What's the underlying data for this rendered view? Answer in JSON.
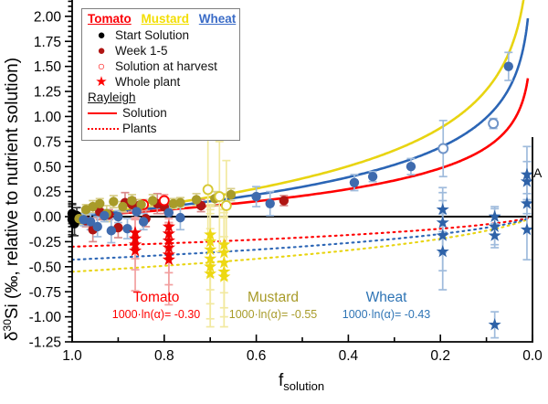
{
  "figure": {
    "ylabel_delta": "δ",
    "ylabel_sup": "30",
    "ylabel_rest": "Si (‰, relative to nutrient solution)",
    "xlabel_main": "f",
    "xlabel_sub": "solution",
    "corner_label": "A"
  },
  "legend": {
    "headers": [
      {
        "label": "Tomato",
        "color": "#fb0007"
      },
      {
        "label": "Mustard",
        "color": "#f2de00"
      },
      {
        "label": "Wheat",
        "color": "#3b6cc7"
      }
    ],
    "items": [
      {
        "label": "Start Solution",
        "glyph": "●",
        "color": "#000000"
      },
      {
        "label": "Week 1-5",
        "glyph": "●",
        "color": "#b01513"
      },
      {
        "label": "Solution at harvest",
        "glyph": "○",
        "color": "#ff0000"
      },
      {
        "label": "Whole plant",
        "glyph": "★",
        "color": "#ff0000"
      }
    ],
    "section_label": "Rayleigh",
    "line_items": [
      {
        "label": "Solution",
        "style": "solid",
        "color": "#ff0000"
      },
      {
        "label": "Plants",
        "style": "dotted",
        "color": "#ff0000"
      }
    ]
  },
  "annotations": [
    {
      "id": "tomato",
      "title": "Tomato",
      "value": "1000·ln(α)= -0.30",
      "color": "#ff0000"
    },
    {
      "id": "mustard",
      "title": "Mustard",
      "value": "1000·ln(α)= -0.55",
      "color": "#a89b29"
    },
    {
      "id": "wheat",
      "title": "Wheat",
      "value": "1000·ln(α)= -0.43",
      "color": "#2e74b5"
    }
  ],
  "chart_data": {
    "type": "scatter",
    "title": "",
    "xlabel": "f_solution",
    "ylabel": "δ30Si (‰, relative to nutrient solution)",
    "xlim": [
      1.0,
      0.0
    ],
    "ylim": [
      -1.25,
      2.163
    ],
    "x_ticks": [
      1.0,
      0.8,
      0.6,
      0.4,
      0.2,
      0.0
    ],
    "x_minor_step": 0.1,
    "y_ticks": [
      -1.25,
      -1.0,
      -0.75,
      -0.5,
      -0.25,
      0.0,
      0.25,
      0.5,
      0.75,
      1.0,
      1.25,
      1.5,
      1.75,
      2.0
    ],
    "y_minor_step": 0.05,
    "zero_line": 0.0,
    "grid": false,
    "rayleigh_curves": {
      "note_labels": [
        "Solution",
        "Plants"
      ],
      "series": [
        {
          "name": "Tomato",
          "epsilon": -0.3,
          "color": "#ff0000"
        },
        {
          "name": "Mustard",
          "epsilon": -0.55,
          "color": "#e8d411"
        },
        {
          "name": "Wheat",
          "epsilon": -0.43,
          "color": "#2b65b5"
        }
      ]
    },
    "series": [
      {
        "name": "Start Solution",
        "marker": "circle",
        "color": "#000000",
        "err_color": "#3a3a3a",
        "points": [
          [
            1.0,
            0.03,
            0.1
          ],
          [
            1.0,
            -0.03,
            0.15
          ],
          [
            0.995,
            -0.07,
            0.12
          ],
          [
            0.99,
            0.01,
            0.08
          ]
        ]
      },
      {
        "name": "Tomato Week 1-5",
        "marker": "circle",
        "color": "#b01513",
        "err_color": "#d98a8a",
        "points": [
          [
            0.97,
            -0.04,
            0.06
          ],
          [
            0.955,
            -0.13,
            0.12
          ],
          [
            0.94,
            0.05,
            0.08
          ],
          [
            0.92,
            0.02,
            0.05
          ],
          [
            0.9,
            -0.11,
            0.1
          ],
          [
            0.885,
            0.14,
            0.1
          ],
          [
            0.87,
            0.12,
            0.07
          ],
          [
            0.855,
            0.11,
            0.06
          ],
          [
            0.84,
            -0.02,
            0.08
          ],
          [
            0.815,
            0.13,
            0.1
          ],
          [
            0.8,
            0.1,
            0.07
          ],
          [
            0.72,
            0.11,
            0.06
          ],
          [
            0.54,
            0.16,
            0.05
          ]
        ]
      },
      {
        "name": "Tomato Solution at harvest",
        "marker": "circle-open",
        "color": "#ff0000",
        "err_color": "#f2a0a0",
        "points": [
          [
            0.845,
            0.12,
            0.05
          ],
          [
            0.8,
            0.16,
            0.06
          ]
        ]
      },
      {
        "name": "Mustard Week 1-5",
        "marker": "circle",
        "color": "#a89b29",
        "err_color": "#d8cf8a",
        "points": [
          [
            0.985,
            -0.02,
            0.06
          ],
          [
            0.97,
            0.07,
            0.05
          ],
          [
            0.955,
            0.1,
            0.06
          ],
          [
            0.94,
            0.13,
            0.05
          ],
          [
            0.925,
            0.03,
            0.08
          ],
          [
            0.91,
            0.15,
            0.06
          ],
          [
            0.89,
            0.1,
            0.05
          ],
          [
            0.87,
            0.16,
            0.06
          ],
          [
            0.85,
            0.12,
            0.05
          ],
          [
            0.825,
            0.16,
            0.06
          ],
          [
            0.78,
            0.13,
            0.05
          ],
          [
            0.765,
            0.14,
            0.05
          ],
          [
            0.73,
            0.17,
            0.06
          ],
          [
            0.69,
            0.18,
            0.07
          ],
          [
            0.655,
            0.22,
            0.06
          ]
        ]
      },
      {
        "name": "Mustard Solution at harvest",
        "marker": "circle-open",
        "color": "#d6c832",
        "err_color": "#f2e9a0",
        "points": [
          [
            0.705,
            0.27,
            0.5
          ],
          [
            0.68,
            0.2,
            0.55
          ],
          [
            0.665,
            0.11,
            0.45
          ]
        ]
      },
      {
        "name": "Wheat Week 1-5",
        "marker": "circle",
        "color": "#3f6bae",
        "err_color": "#9fbbdc",
        "points": [
          [
            0.975,
            -0.03,
            0.06
          ],
          [
            0.96,
            -0.05,
            0.08
          ],
          [
            0.945,
            -0.1,
            0.1
          ],
          [
            0.93,
            0.01,
            0.06
          ],
          [
            0.915,
            -0.14,
            0.12
          ],
          [
            0.9,
            0.0,
            0.06
          ],
          [
            0.88,
            -0.12,
            0.1
          ],
          [
            0.86,
            0.05,
            0.06
          ],
          [
            0.845,
            -0.05,
            0.08
          ],
          [
            0.79,
            0.04,
            0.1
          ],
          [
            0.765,
            -0.01,
            0.12
          ],
          [
            0.6,
            0.2,
            0.1
          ],
          [
            0.57,
            0.13,
            0.12
          ],
          [
            0.387,
            0.34,
            0.08
          ],
          [
            0.347,
            0.4,
            0.05
          ],
          [
            0.264,
            0.5,
            0.08
          ],
          [
            0.052,
            1.5,
            0.14
          ]
        ]
      },
      {
        "name": "Wheat Solution at harvest",
        "marker": "circle-open",
        "color": "#6f94c8",
        "err_color": "#9fbbdc",
        "points": [
          [
            0.194,
            0.68,
            0.28
          ],
          [
            0.085,
            0.93,
            0.05
          ]
        ]
      },
      {
        "name": "Tomato Whole plant",
        "marker": "star",
        "color": "#f00000",
        "err_color": "#f2a0a0",
        "points": [
          [
            0.863,
            -0.16,
            0.15
          ],
          [
            0.863,
            -0.22,
            0.2
          ],
          [
            0.863,
            -0.28,
            0.25
          ],
          [
            0.863,
            -0.34,
            0.4
          ],
          [
            0.79,
            -0.1,
            0.12
          ],
          [
            0.79,
            -0.17,
            0.15
          ],
          [
            0.79,
            -0.24,
            0.18
          ],
          [
            0.79,
            -0.31,
            0.25
          ],
          [
            0.79,
            -0.38,
            0.3
          ],
          [
            0.79,
            -0.43,
            0.45
          ]
        ]
      },
      {
        "name": "Mustard Whole plant",
        "marker": "star",
        "color": "#edd812",
        "err_color": "#f2e9a0",
        "points": [
          [
            0.7,
            -0.18,
            0.3
          ],
          [
            0.7,
            -0.25,
            0.35
          ],
          [
            0.7,
            -0.33,
            0.4
          ],
          [
            0.7,
            -0.42,
            0.45
          ],
          [
            0.7,
            -0.5,
            0.6
          ],
          [
            0.7,
            -0.57,
            0.45
          ],
          [
            0.67,
            -0.28,
            0.35
          ],
          [
            0.67,
            -0.36,
            0.4
          ],
          [
            0.67,
            -0.46,
            0.45
          ],
          [
            0.67,
            -0.55,
            0.55
          ],
          [
            0.67,
            -0.6,
            0.4
          ]
        ]
      },
      {
        "name": "Wheat Whole plant",
        "marker": "star",
        "color": "#2e62a8",
        "err_color": "#9fbbdc",
        "points": [
          [
            0.195,
            0.07,
            0.22
          ],
          [
            0.195,
            -0.06,
            0.3
          ],
          [
            0.195,
            -0.19,
            0.35
          ],
          [
            0.195,
            -0.35,
            0.38
          ],
          [
            0.082,
            0.0,
            0.1
          ],
          [
            0.082,
            -0.1,
            0.18
          ],
          [
            0.082,
            -0.19,
            0.12
          ],
          [
            0.082,
            -1.08,
            0.13
          ],
          [
            0.012,
            0.42,
            0.28
          ],
          [
            0.012,
            0.35,
            0.2
          ],
          [
            0.012,
            0.13,
            0.1
          ],
          [
            0.012,
            -0.13,
            0.3
          ]
        ]
      }
    ]
  }
}
